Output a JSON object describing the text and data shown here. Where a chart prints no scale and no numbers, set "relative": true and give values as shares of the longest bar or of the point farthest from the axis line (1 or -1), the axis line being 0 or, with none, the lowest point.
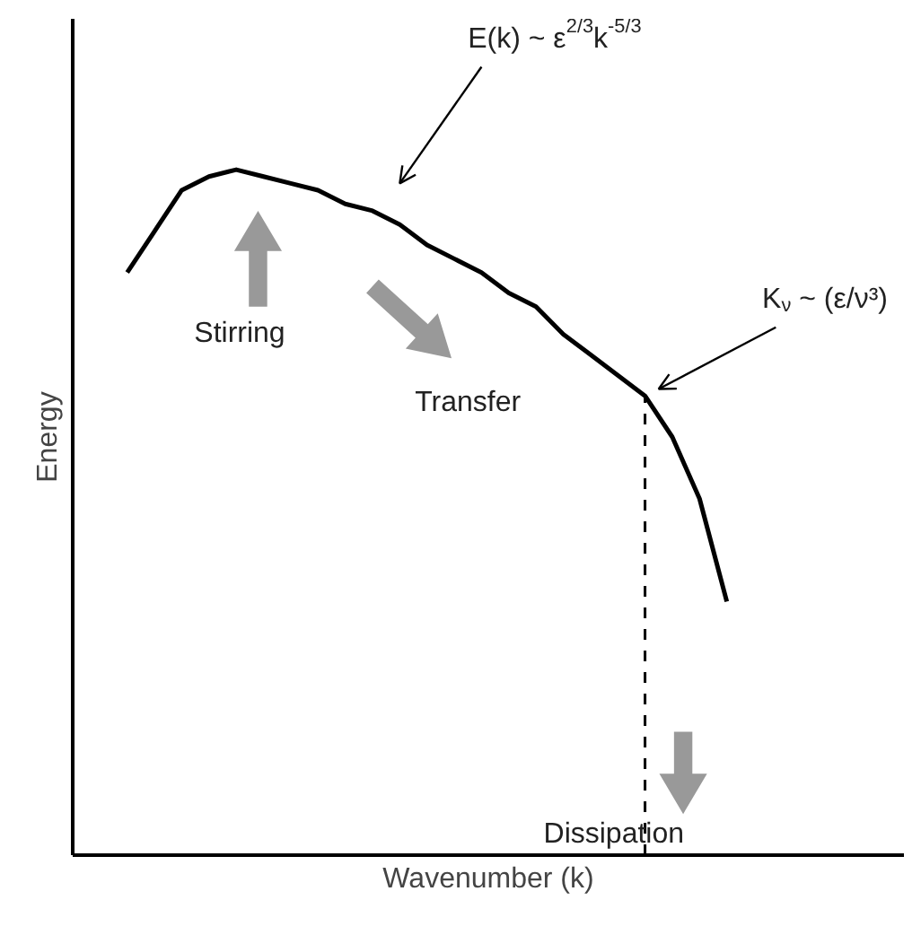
{
  "chart_data": {
    "type": "line",
    "relative": true,
    "color": "#000000",
    "xlabel": "Wavenumber (k)",
    "ylabel": "Energy",
    "categories": [
      null,
      null,
      null,
      null,
      null,
      null,
      null,
      null,
      null,
      null,
      null,
      null,
      null,
      null,
      null,
      null,
      null,
      null,
      null,
      null,
      null,
      null,
      null
    ],
    "values": [
      0.85,
      0.91,
      0.97,
      0.99,
      1.0,
      0.99,
      0.98,
      0.97,
      0.95,
      0.94,
      0.92,
      0.89,
      0.87,
      0.85,
      0.82,
      0.8,
      0.76,
      0.73,
      0.7,
      0.67,
      0.61,
      0.52,
      0.37
    ],
    "annotations": [
      "E(k) ~ ε$^{2/3}$k$^{-5/3}$",
      "Stirring",
      "Transfer",
      "K$_{ν}$ ~ (ε/ν³)",
      "Dissipation"
    ]
  }
}
